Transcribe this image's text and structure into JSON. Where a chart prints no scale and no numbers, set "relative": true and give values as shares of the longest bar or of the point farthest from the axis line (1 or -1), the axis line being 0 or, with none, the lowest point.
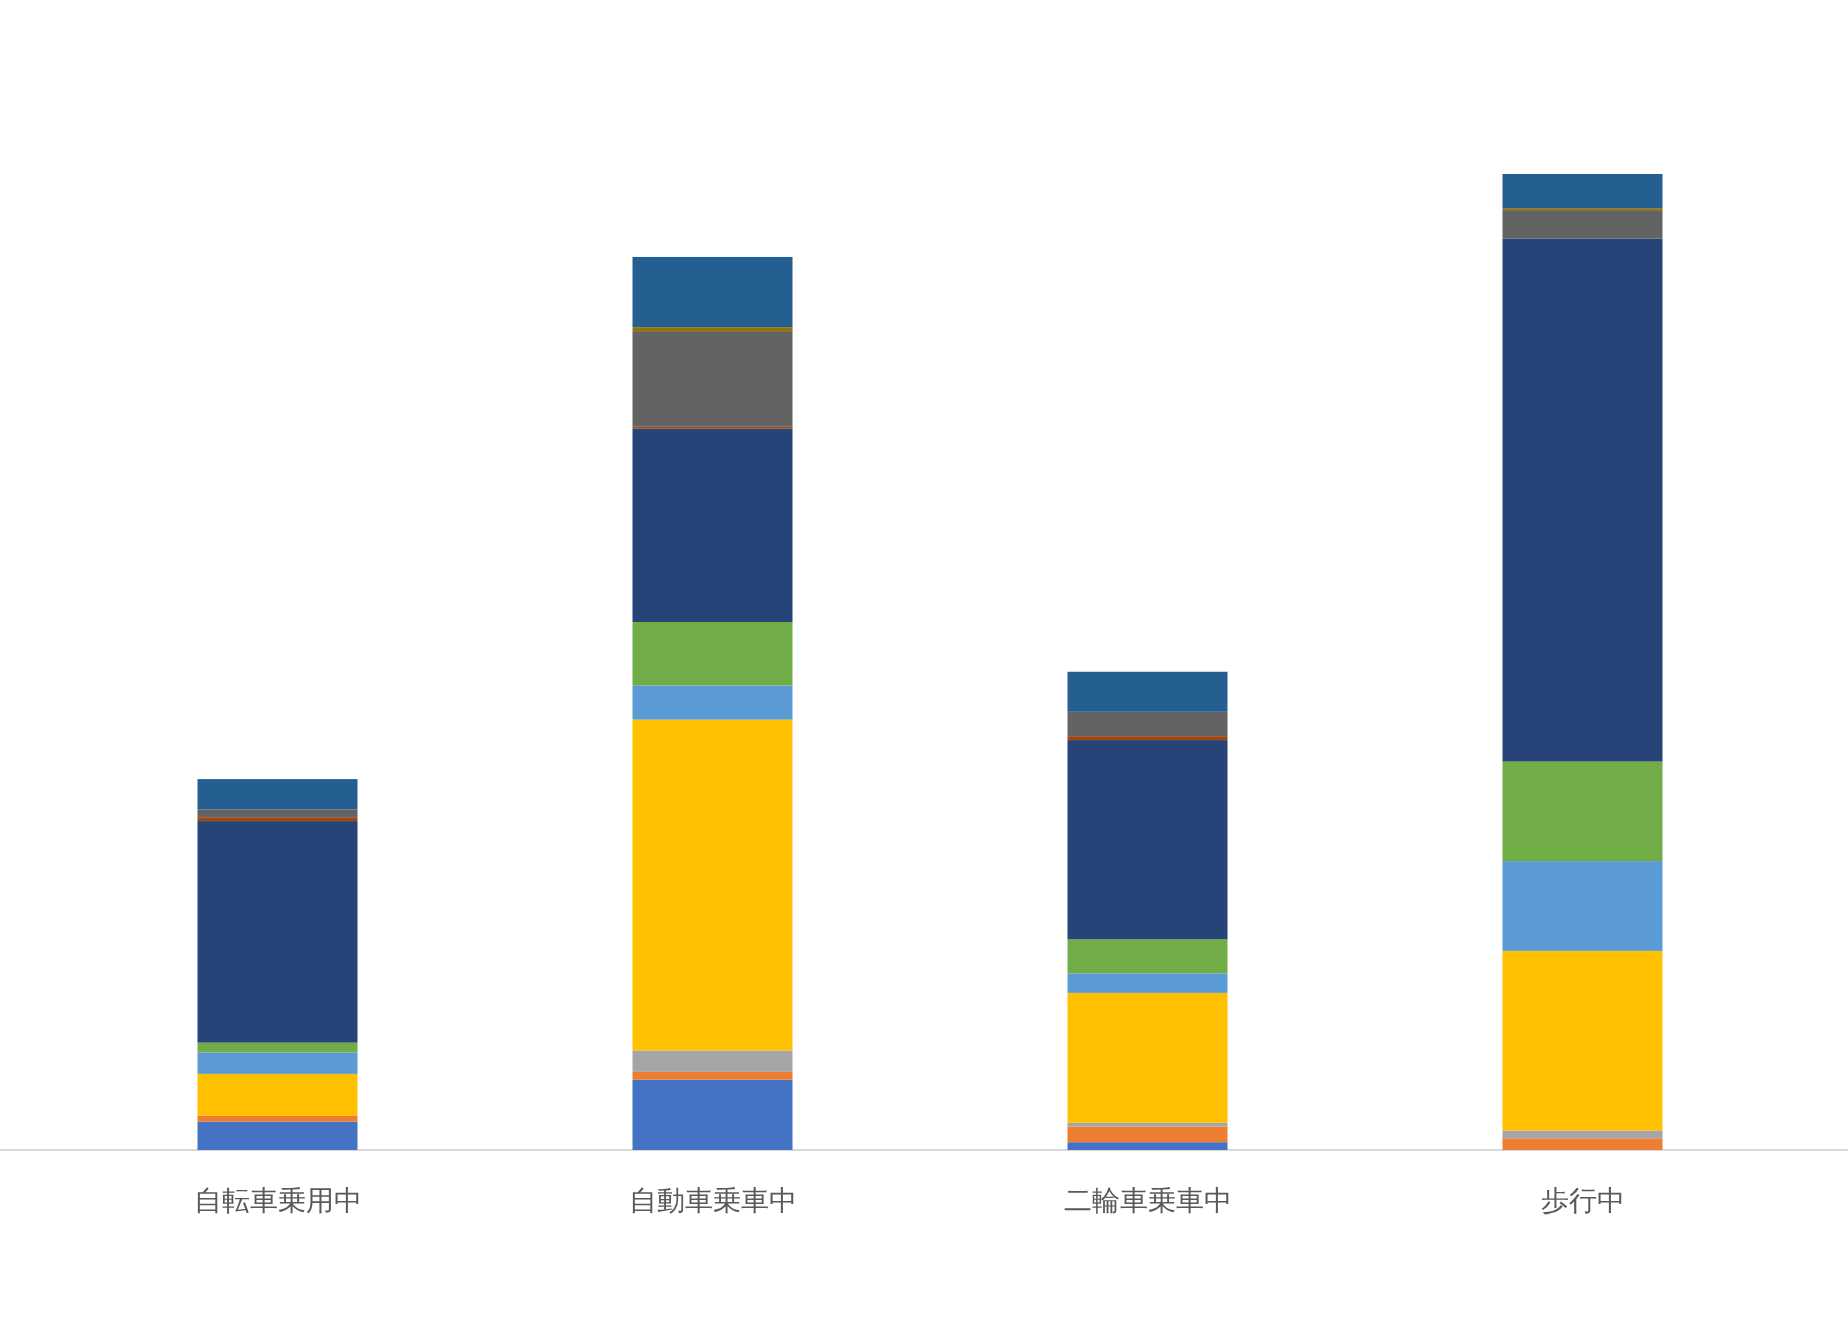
{
  "chart_data": {
    "type": "bar",
    "stacked": true,
    "relative": true,
    "categories": [
      "自転車乗用中",
      "自動車乗車中",
      "二輪車乗車中",
      "歩行中"
    ],
    "series": [
      {
        "color": "#4472c4",
        "values": [
          0.029,
          0.072,
          0.008,
          0
        ]
      },
      {
        "color": "#ed7d31",
        "values": [
          0.006,
          0.008,
          0.016,
          0.012
        ]
      },
      {
        "color": "#a5a5a5",
        "values": [
          null,
          0.022,
          0.004,
          0.008
        ]
      },
      {
        "color": "#ffc000",
        "values": [
          0.043,
          0.339,
          0.133,
          0.184
        ]
      },
      {
        "color": "#5b9bd5",
        "values": [
          0.022,
          0.035,
          0.02,
          0.092
        ]
      },
      {
        "color": "#70ad47",
        "values": [
          0.01,
          0.065,
          0.035,
          0.102
        ]
      },
      {
        "color": "#264478",
        "values": [
          0.227,
          0.198,
          0.204,
          0.536
        ]
      },
      {
        "color": "#9e480e",
        "values": [
          0.004,
          0.002,
          0.004,
          0
        ]
      },
      {
        "color": "#636363",
        "values": [
          0.008,
          0.098,
          0.025,
          0.029
        ]
      },
      {
        "color": "#997300",
        "values": [
          0,
          0.004,
          0,
          0.002
        ]
      },
      {
        "color": "#255e91",
        "values": [
          0.031,
          0.072,
          0.041,
          0.035
        ]
      }
    ]
  }
}
